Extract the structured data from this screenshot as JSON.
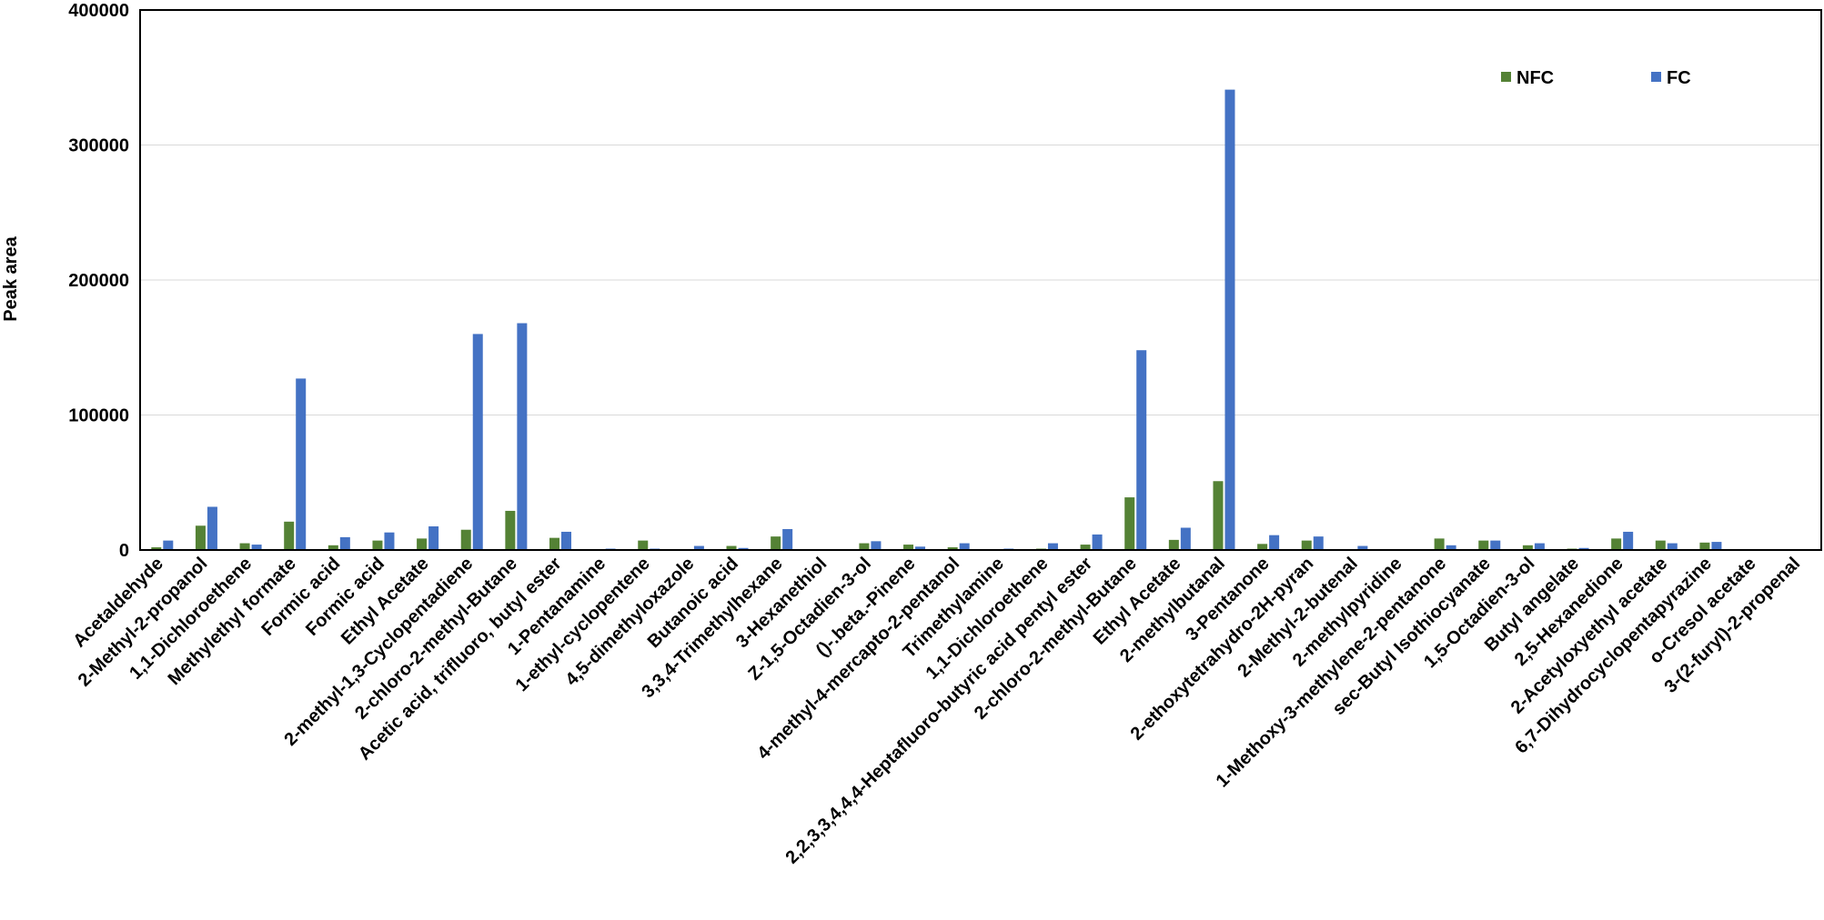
{
  "chart_data": {
    "type": "bar",
    "ylabel": "Peak  area",
    "xlabel": "",
    "ylim": [
      0,
      400000
    ],
    "yticks": [
      0,
      100000,
      200000,
      300000,
      400000
    ],
    "grid": true,
    "legend_position": "top-right",
    "categories": [
      "Acetaldehyde",
      "2-Methyl-2-propanol",
      "1,1-Dichloroethene",
      "Methylethyl formate",
      "Formic acid",
      "Formic acid",
      "Ethyl Acetate",
      "2-methyl-1,3-Cyclopentadiene",
      "2-chloro-2-methyl-Butane",
      "Acetic acid, trifluoro, butyl ester",
      "1-Pentanamine",
      "1-ethyl-cyclopentene",
      "4,5-dimethyloxazole",
      "Butanoic acid",
      "3,3,4-Trimethylhexane",
      "3-Hexanethiol",
      "Z-1,5-Octadien-3-ol",
      "()-.beta.-Pinene",
      "4-methyl-4-mercapto-2-pentanol",
      "Trimethylamine",
      "1,1-Dichloroethene",
      "2,2,3,3,4,4,4-Heptafluoro-butyric acid pentyl ester",
      "2-chloro-2-methyl-Butane",
      "Ethyl Acetate",
      "2-methylbutanal",
      "3-Pentanone",
      "2-ethoxytetrahydro-2H-pyran",
      "2-Methyl-2-butenal",
      "2-methylpyridine",
      "1-Methoxy-3-methylene-2-pentanone",
      "sec-Butyl Isothiocyanate",
      "1,5-Octadien-3-ol",
      "Butyl angelate",
      "2,5-Hexanedione",
      "2-Acetyloxyethyl acetate",
      "6,7-Dihydrocyclopentapyrazine",
      "o-Cresol acetate",
      "3-(2-furyl)-2-propenal"
    ],
    "series": [
      {
        "name": "NFC",
        "color": "#548235",
        "values": [
          2000,
          18000,
          5000,
          21000,
          3500,
          7000,
          8500,
          15000,
          29000,
          9000,
          500,
          7000,
          500,
          3000,
          10000,
          0,
          5000,
          4000,
          2000,
          300,
          1000,
          4000,
          39000,
          7500,
          51000,
          4500,
          7000,
          500,
          0,
          8500,
          7000,
          3500,
          1000,
          8500,
          7000,
          5500,
          500,
          500
        ]
      },
      {
        "name": "FC",
        "color": "#4472C4",
        "values": [
          7000,
          32000,
          4000,
          127000,
          9500,
          13000,
          17500,
          160000,
          168000,
          13500,
          1000,
          1000,
          3000,
          1500,
          15500,
          0,
          6500,
          2500,
          5000,
          1000,
          5000,
          11500,
          148000,
          16500,
          341000,
          11000,
          10000,
          3000,
          0,
          3500,
          7000,
          5000,
          1500,
          13500,
          5000,
          6000,
          500,
          500
        ]
      }
    ]
  }
}
